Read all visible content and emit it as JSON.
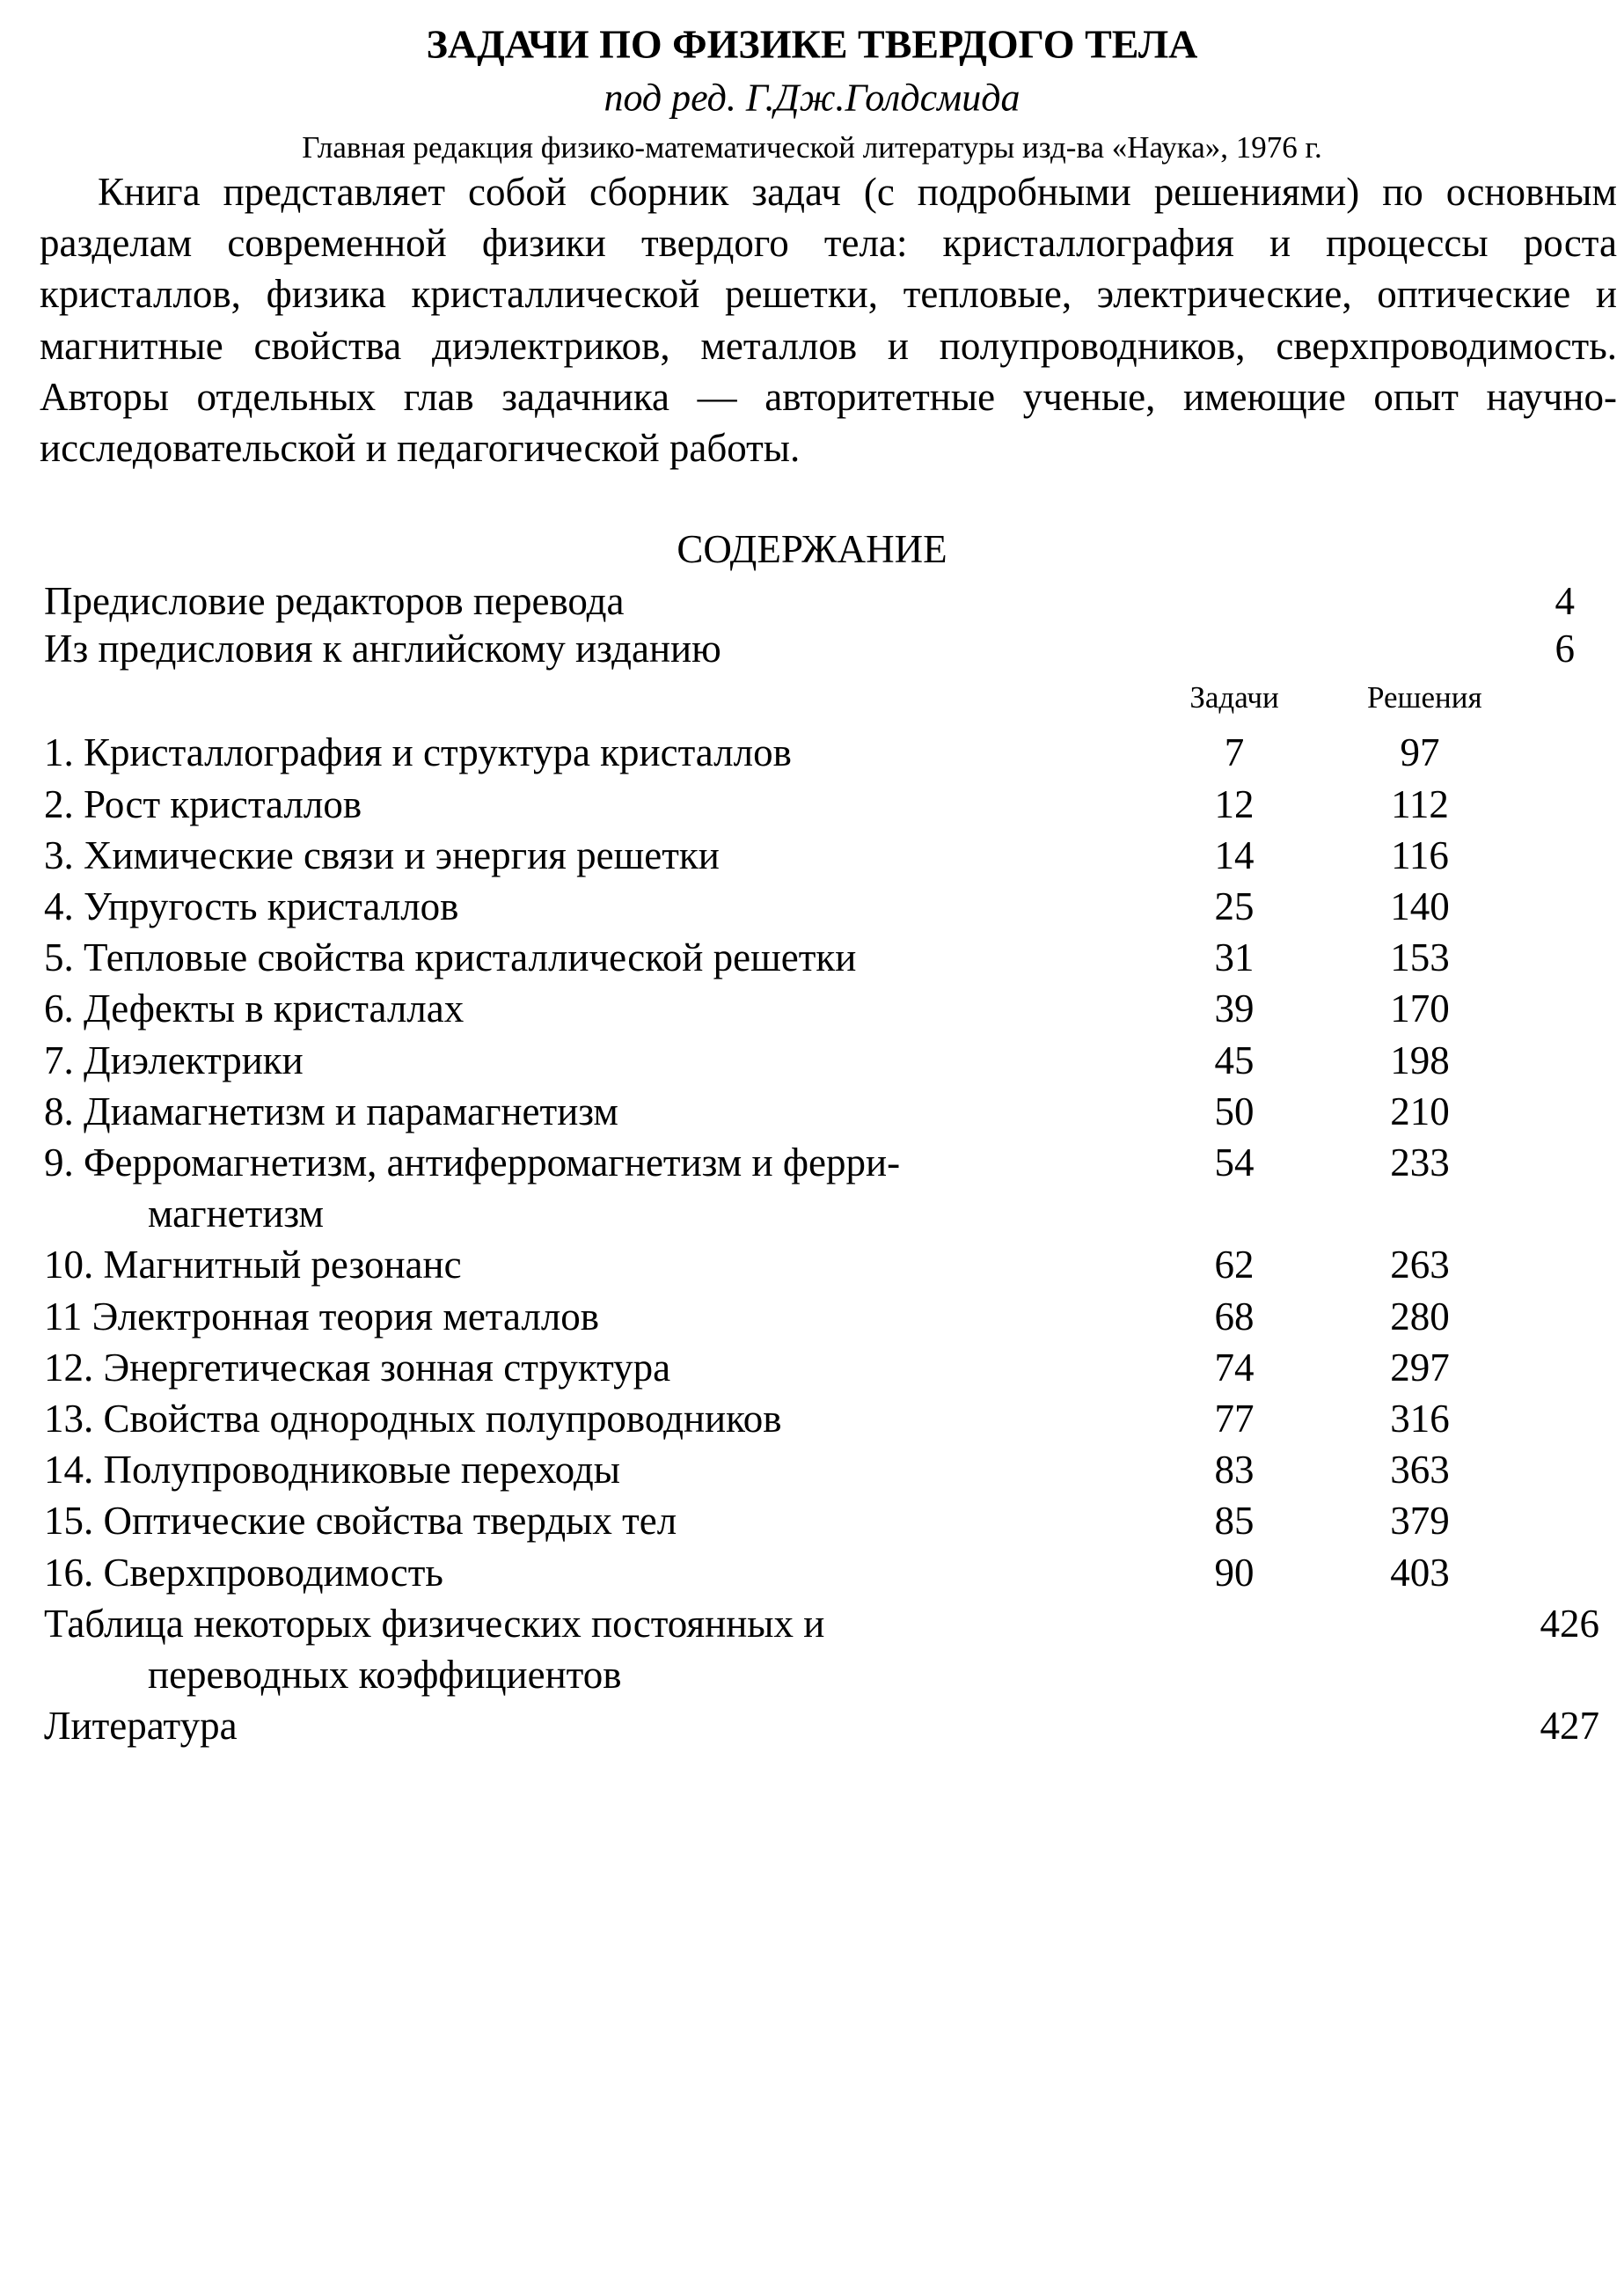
{
  "header": {
    "title": "ЗАДАЧИ ПО ФИЗИКЕ ТВЕРДОГО ТЕЛА",
    "subtitle": "под ред. Г.Дж.Голдсмида",
    "publisher": "Главная редакция физико-математической литературы изд-ва «Наука», 1976 г."
  },
  "description": "Книга представляет собой сборник задач (с подробными решениями) по основным разделам современной физики твердого тела: кристаллография и процессы роста кристаллов, физика кристаллической решетки, тепловые, электрические, оптические и магнитные свойства диэлектриков, металлов и полупроводников, сверхпроводимость. Авторы отдельных глав задачника — авторитетные ученые, имеющие опыт научно-исследовательской и педагогической работы.",
  "toc": {
    "title": "СОДЕРЖАНИЕ",
    "front": [
      {
        "label": "Предисловие редакторов перевода",
        "page": "4"
      },
      {
        "label": "Из предисловия к английскому изданию",
        "page": "6"
      }
    ],
    "col_problems": "Задачи",
    "col_solutions": "Решения",
    "chapters": [
      {
        "label": "1. Кристаллография и структура кристаллов",
        "problems": "7",
        "solutions": "97"
      },
      {
        "label": "2. Рост кристаллов",
        "problems": "12",
        "solutions": "112"
      },
      {
        "label": "3. Химические связи и энергия решетки",
        "problems": "14",
        "solutions": "116"
      },
      {
        "label": "4. Упругость кристаллов",
        "problems": "25",
        "solutions": "140"
      },
      {
        "label": "5. Тепловые свойства кристаллической решетки",
        "problems": "31",
        "solutions": "153"
      },
      {
        "label": "6. Дефекты в кристаллах",
        "problems": "39",
        "solutions": "170"
      },
      {
        "label": "7. Диэлектрики",
        "problems": "45",
        "solutions": "198"
      },
      {
        "label": "8. Диамагнетизм и парамагнетизм",
        "problems": "50",
        "solutions": "210"
      },
      {
        "label": "9. Ферромагнетизм, антиферромагнетизм и ферри-",
        "continuation": "магнетизм",
        "problems": "54",
        "solutions": "233"
      },
      {
        "label": "10. Магнитный резонанс",
        "problems": "62",
        "solutions": "263"
      },
      {
        "label": "11 Электронная теория металлов",
        "problems": "68",
        "solutions": "280"
      },
      {
        "label": "12. Энергетическая зонная структура",
        "problems": "74",
        "solutions": "297"
      },
      {
        "label": "13. Свойства однородных полупроводников",
        "problems": "77",
        "solutions": "316"
      },
      {
        "label": "14. Полупроводниковые переходы",
        "problems": "83",
        "solutions": "363"
      },
      {
        "label": "15. Оптические свойства твердых тел",
        "problems": "85",
        "solutions": "379"
      },
      {
        "label": "16. Сверхпроводимость",
        "problems": "90",
        "solutions": "403"
      }
    ],
    "back": [
      {
        "label": "Таблица некоторых физических постоянных и",
        "continuation": "переводных коэффициентов",
        "page": "426"
      },
      {
        "label": "Литература",
        "page": "427"
      }
    ]
  }
}
